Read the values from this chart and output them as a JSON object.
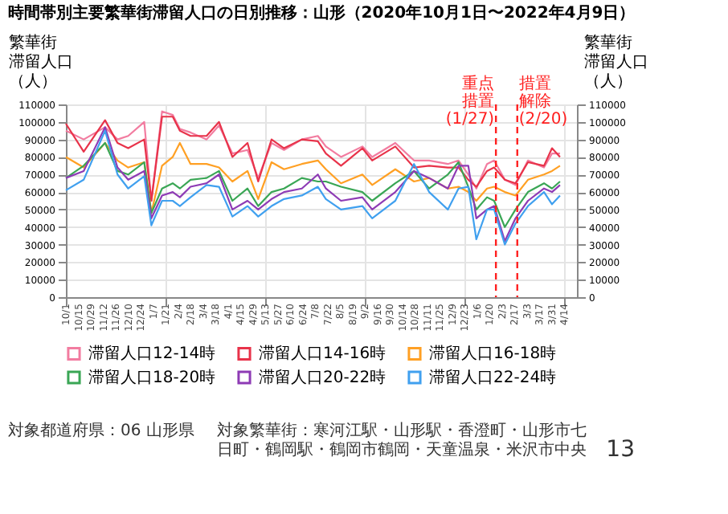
{
  "chart_data": {
    "type": "line",
    "title": "時間帯別主要繁華街滞留人口の日別推移：山形（2020年10月1日〜2022年4月9日）",
    "ylabel": "繁華街滞留人口（人）",
    "y2label": "繁華街滞留人口（人）",
    "x": [
      "2020-10-01",
      "2020-10-21",
      "2020-11-14",
      "2020-11-28",
      "2020-12-10",
      "2020-12-28",
      "2021-01-05",
      "2021-01-17",
      "2021-01-29",
      "2021-02-06",
      "2021-02-18",
      "2021-03-08",
      "2021-03-22",
      "2021-04-06",
      "2021-04-23",
      "2021-05-05",
      "2021-05-20",
      "2021-06-03",
      "2021-06-23",
      "2021-07-11",
      "2021-07-20",
      "2021-08-06",
      "2021-08-30",
      "2021-09-10",
      "2021-10-06",
      "2021-10-27",
      "2021-11-13",
      "2021-12-04",
      "2021-12-16",
      "2021-12-27",
      "2022-01-05",
      "2022-01-17",
      "2022-01-25",
      "2022-02-06",
      "2022-02-18",
      "2022-03-04",
      "2022-03-22",
      "2022-03-31",
      "2022-04-09"
    ],
    "series": [
      {
        "name": "滞留人口12-14時",
        "color": "#f27ca0",
        "values": [
          95000,
          90000,
          97000,
          90000,
          92000,
          100000,
          55000,
          106000,
          104000,
          96000,
          94000,
          90000,
          98000,
          82000,
          84000,
          68000,
          88000,
          84000,
          90000,
          92000,
          86000,
          80000,
          86000,
          80000,
          88000,
          78000,
          78000,
          76000,
          78000,
          70000,
          62000,
          76000,
          78000,
          67000,
          64000,
          78000,
          74000,
          82000,
          82000
        ]
      },
      {
        "name": "滞留人口14-16時",
        "color": "#e8334a",
        "values": [
          99000,
          83000,
          101000,
          88000,
          85000,
          90000,
          55000,
          103000,
          103000,
          95000,
          92000,
          92000,
          100000,
          80000,
          88000,
          66000,
          90000,
          85000,
          90000,
          89000,
          82000,
          75000,
          85000,
          78000,
          86000,
          74000,
          75000,
          74000,
          74000,
          67000,
          63000,
          72000,
          74000,
          67000,
          65000,
          77000,
          75000,
          85000,
          80000
        ]
      },
      {
        "name": "滞留人口16-18時",
        "color": "#ffa024",
        "values": [
          80000,
          74000,
          88000,
          78000,
          74000,
          77000,
          48000,
          75000,
          80000,
          88000,
          76000,
          76000,
          74000,
          66000,
          72000,
          56000,
          77000,
          73000,
          76000,
          78000,
          73000,
          65000,
          70000,
          64000,
          73000,
          66000,
          68000,
          62000,
          63000,
          60000,
          55000,
          62000,
          63000,
          60000,
          58000,
          67000,
          70000,
          72000,
          75000
        ]
      },
      {
        "name": "滞留人口18-20時",
        "color": "#3aa655",
        "values": [
          68000,
          75000,
          88000,
          72000,
          70000,
          77000,
          48000,
          62000,
          65000,
          62000,
          67000,
          68000,
          72000,
          55000,
          62000,
          52000,
          60000,
          62000,
          68000,
          66000,
          66000,
          63000,
          60000,
          55000,
          65000,
          72000,
          62000,
          70000,
          77000,
          63000,
          50000,
          57000,
          55000,
          40000,
          50000,
          60000,
          65000,
          62000,
          66000
        ]
      },
      {
        "name": "滞留人口20-22時",
        "color": "#8e3bb5",
        "values": [
          68000,
          72000,
          97000,
          74000,
          67000,
          72000,
          45000,
          58000,
          60000,
          57000,
          63000,
          65000,
          70000,
          50000,
          55000,
          50000,
          56000,
          60000,
          62000,
          70000,
          62000,
          55000,
          57000,
          50000,
          60000,
          72000,
          68000,
          62000,
          75000,
          75000,
          45000,
          50000,
          52000,
          32000,
          45000,
          55000,
          62000,
          60000,
          64000
        ]
      },
      {
        "name": "滞留人口22-24時",
        "color": "#40a0ef",
        "values": [
          61000,
          67000,
          95000,
          70000,
          62000,
          69000,
          41000,
          55000,
          55000,
          52000,
          57000,
          64000,
          63000,
          46000,
          52000,
          46000,
          52000,
          56000,
          58000,
          63000,
          56000,
          50000,
          52000,
          45000,
          55000,
          76000,
          60000,
          50000,
          62000,
          63000,
          33000,
          50000,
          50000,
          30000,
          42000,
          52000,
          60000,
          53000,
          58000
        ]
      }
    ],
    "xlim": [
      "2020-10-01",
      "2022-04-28"
    ],
    "xticks": [
      {
        "value": "2020-10-01",
        "label": "10/1"
      },
      {
        "value": "2020-10-15",
        "label": "10/15"
      },
      {
        "value": "2020-10-29",
        "label": "10/29"
      },
      {
        "value": "2020-11-12",
        "label": "11/12"
      },
      {
        "value": "2020-11-26",
        "label": "11/26"
      },
      {
        "value": "2020-12-10",
        "label": "12/10"
      },
      {
        "value": "2020-12-24",
        "label": "12/24"
      },
      {
        "value": "2021-01-07",
        "label": "1/7"
      },
      {
        "value": "2021-01-21",
        "label": "1/21"
      },
      {
        "value": "2021-02-04",
        "label": "2/4"
      },
      {
        "value": "2021-02-18",
        "label": "2/18"
      },
      {
        "value": "2021-03-04",
        "label": "3/4"
      },
      {
        "value": "2021-03-18",
        "label": "3/18"
      },
      {
        "value": "2021-04-01",
        "label": "4/1"
      },
      {
        "value": "2021-04-15",
        "label": "4/15"
      },
      {
        "value": "2021-04-29",
        "label": "4/29"
      },
      {
        "value": "2021-05-13",
        "label": "5/13"
      },
      {
        "value": "2021-05-27",
        "label": "5/27"
      },
      {
        "value": "2021-06-10",
        "label": "6/10"
      },
      {
        "value": "2021-06-24",
        "label": "6/24"
      },
      {
        "value": "2021-07-08",
        "label": "7/8"
      },
      {
        "value": "2021-07-22",
        "label": "7/22"
      },
      {
        "value": "2021-08-05",
        "label": "8/5"
      },
      {
        "value": "2021-08-19",
        "label": "8/19"
      },
      {
        "value": "2021-09-02",
        "label": "9/2"
      },
      {
        "value": "2021-09-16",
        "label": "9/16"
      },
      {
        "value": "2021-09-30",
        "label": "9/30"
      },
      {
        "value": "2021-10-14",
        "label": "10/14"
      },
      {
        "value": "2021-10-28",
        "label": "10/28"
      },
      {
        "value": "2021-11-11",
        "label": "11/11"
      },
      {
        "value": "2021-11-25",
        "label": "11/25"
      },
      {
        "value": "2021-12-09",
        "label": "12/9"
      },
      {
        "value": "2021-12-23",
        "label": "12/23"
      },
      {
        "value": "2022-01-06",
        "label": "1/6"
      },
      {
        "value": "2022-01-20",
        "label": "1/20"
      },
      {
        "value": "2022-02-03",
        "label": "2/3"
      },
      {
        "value": "2022-02-17",
        "label": "2/17"
      },
      {
        "value": "2022-03-03",
        "label": "3/3"
      },
      {
        "value": "2022-03-17",
        "label": "3/17"
      },
      {
        "value": "2022-03-31",
        "label": "3/31"
      },
      {
        "value": "2022-04-14",
        "label": "4/14"
      }
    ],
    "ylim": [
      0,
      110000
    ],
    "yticks": [
      0,
      10000,
      20000,
      30000,
      40000,
      50000,
      60000,
      70000,
      80000,
      90000,
      100000,
      110000
    ],
    "y2lim": [
      0,
      110000
    ],
    "y2ticks": [
      0,
      10000,
      20000,
      30000,
      40000,
      50000,
      60000,
      70000,
      80000,
      90000,
      100000,
      110000
    ],
    "ref_lines": [
      {
        "axis": "x",
        "value": "2022-01-27",
        "label": "重点措置(1/27)",
        "color": "#ff2020",
        "line_style": "dashed"
      },
      {
        "axis": "x",
        "value": "2022-02-20",
        "label": "措置解除(2/20)",
        "color": "#ff2020",
        "line_style": "dashed"
      }
    ],
    "annotations": [
      "対象都道府県：06 山形県",
      "対象繁華街：寒河江駅・山形駅・香澄町・山形市七日町・鶴岡駅・鶴岡市鶴岡・天童温泉・米沢市中央",
      "13"
    ],
    "grid": true,
    "legend": "bottom",
    "marker": "none",
    "line_style": "solid"
  }
}
